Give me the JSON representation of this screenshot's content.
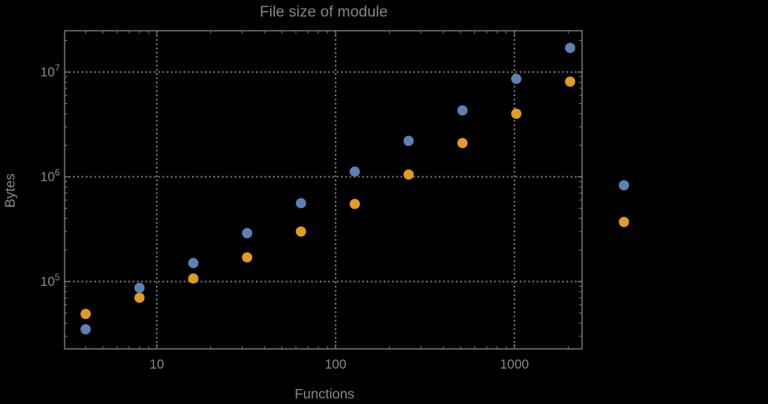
{
  "styles": {
    "background": "#000000",
    "frame_color": "#787878",
    "tick_color": "#787878",
    "grid_color": "#838383",
    "text_color": "#8a8a8a",
    "title_color": "#868686",
    "series_blue": "#5e81b5",
    "series_orange": "#e19c24"
  },
  "chart_data": {
    "type": "scatter",
    "title": "File size of module",
    "xlabel": "Functions",
    "ylabel": "Bytes",
    "x_scale": "log",
    "y_scale": "log",
    "grid": "dotted",
    "legend": "none",
    "xlim": [
      3.05,
      2390
    ],
    "ylim": [
      22750,
      24800000
    ],
    "x": [
      4,
      8,
      16,
      32,
      64,
      128,
      256,
      512,
      1024,
      2048,
      4096
    ],
    "series": [
      {
        "name": "blue",
        "color": "#5e81b5",
        "values": [
          35000,
          87000,
          150000,
          290000,
          560000,
          1120000,
          2200000,
          4300000,
          8600000,
          17000000,
          830000
        ]
      },
      {
        "name": "orange",
        "color": "#e19c24",
        "values": [
          49000,
          70000,
          107000,
          170000,
          300000,
          550000,
          1050000,
          2100000,
          4000000,
          8100000,
          370000
        ]
      }
    ],
    "x_ticks": [
      {
        "v": 10,
        "label": "10"
      },
      {
        "v": 100,
        "label": "100"
      },
      {
        "v": 1000,
        "label": "1000"
      }
    ],
    "y_ticks": [
      {
        "v": 10000000,
        "label_base": "10",
        "label_exp": "7"
      },
      {
        "v": 1000000,
        "label_base": "10",
        "label_exp": "6"
      },
      {
        "v": 100000,
        "label_base": "10",
        "label_exp": "5"
      }
    ]
  }
}
